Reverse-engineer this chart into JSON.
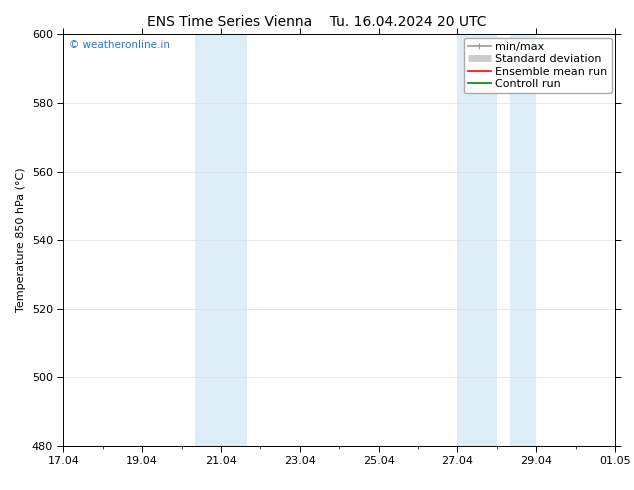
{
  "title": "ENS Time Series Vienna",
  "title2": "Tu. 16.04.2024 20 UTC",
  "ylabel": "Temperature 850 hPa (°C)",
  "ylim": [
    480,
    600
  ],
  "yticks": [
    480,
    500,
    520,
    540,
    560,
    580,
    600
  ],
  "xtick_labels": [
    "17.04",
    "19.04",
    "21.04",
    "23.04",
    "25.04",
    "27.04",
    "29.04",
    "01.05"
  ],
  "xtick_positions": [
    0,
    2,
    4,
    6,
    8,
    10,
    12,
    14
  ],
  "xlim": [
    0,
    14
  ],
  "shaded_bands": [
    {
      "x_start": 3.33,
      "x_end": 4.67,
      "color": "#ddeef8"
    },
    {
      "x_start": 10.0,
      "x_end": 11.0,
      "color": "#ddeef8"
    },
    {
      "x_start": 11.33,
      "x_end": 12.0,
      "color": "#ddeef8"
    }
  ],
  "watermark_text": "© weatheronline.in",
  "watermark_color": "#2277cc",
  "legend_items": [
    {
      "label": "min/max",
      "color": "#999999",
      "lw": 1.2,
      "style": "minmax"
    },
    {
      "label": "Standard deviation",
      "color": "#cccccc",
      "lw": 5,
      "style": "thick"
    },
    {
      "label": "Ensemble mean run",
      "color": "#ff0000",
      "lw": 1.2,
      "style": "line"
    },
    {
      "label": "Controll run",
      "color": "#008800",
      "lw": 1.2,
      "style": "line"
    }
  ],
  "background_color": "#ffffff",
  "plot_bg_color": "#ffffff",
  "grid_color": "#dddddd",
  "title_fontsize": 10,
  "axis_fontsize": 8,
  "tick_fontsize": 8,
  "legend_fontsize": 8
}
